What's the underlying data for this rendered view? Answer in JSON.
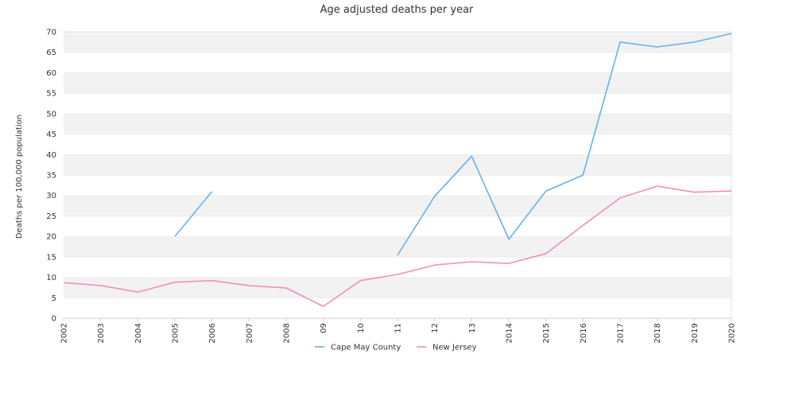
{
  "chart_data": {
    "type": "line",
    "title": "Age adjusted deaths per year",
    "xlabel": "",
    "ylabel": "Deaths per 100,000 population",
    "categories": [
      "2002",
      "2003",
      "2004",
      "2005",
      "2006",
      "2007",
      "2008",
      "09",
      "10",
      "11",
      "12",
      "13",
      "2014",
      "2015",
      "2016",
      "2017",
      "2018",
      "2019",
      "2020"
    ],
    "ylim": [
      0,
      70
    ],
    "yticks": [
      0,
      5,
      10,
      15,
      20,
      25,
      30,
      35,
      40,
      45,
      50,
      55,
      60,
      65,
      70
    ],
    "grid": "horizontal bands",
    "legend_position": "bottom-center",
    "series": [
      {
        "name": "Cape May County",
        "color": "#6ab0ea",
        "values": [
          null,
          null,
          null,
          20.0,
          31.0,
          null,
          null,
          null,
          null,
          15.4,
          29.8,
          39.6,
          19.3,
          31.1,
          35.0,
          67.5,
          66.3,
          67.5,
          69.6
        ]
      },
      {
        "name": "New Jersey",
        "color": "#f08fbf",
        "values": [
          8.7,
          8.0,
          6.4,
          8.8,
          9.2,
          8.0,
          7.4,
          2.9,
          9.2,
          10.7,
          13.0,
          13.8,
          13.4,
          15.8,
          22.7,
          29.4,
          32.3,
          30.8,
          31.1
        ]
      }
    ]
  }
}
